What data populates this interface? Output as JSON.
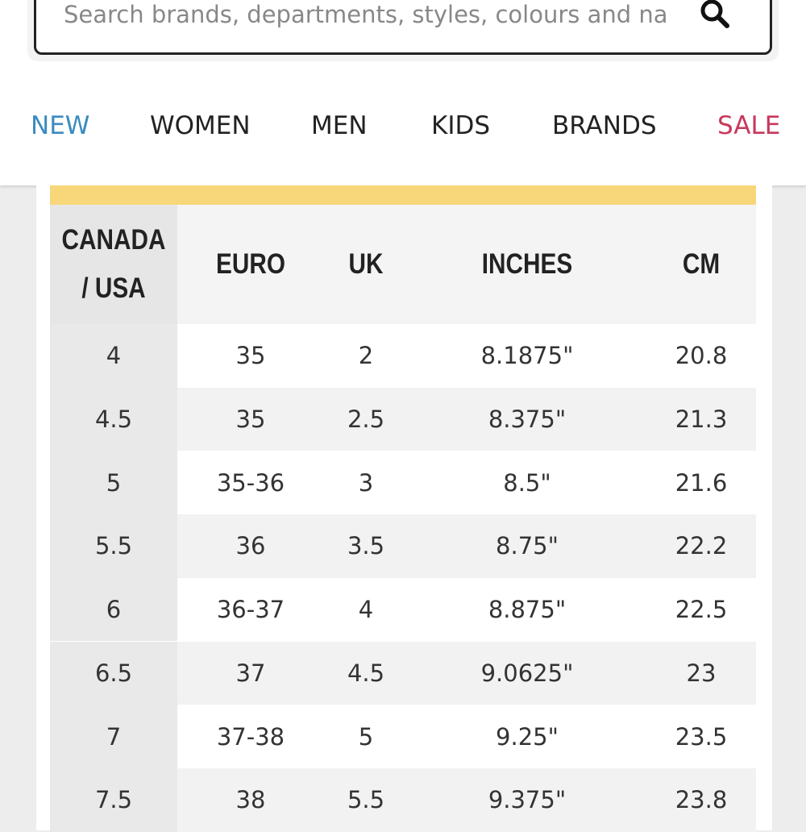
{
  "search": {
    "placeholder": "Search brands, departments, styles, colours and na"
  },
  "nav": [
    "NEW",
    "WOMEN",
    "MEN",
    "KIDS",
    "BRANDS",
    "SALE"
  ],
  "table": {
    "headers": [
      "CANADA / USA",
      "EURO",
      "UK",
      "INCHES",
      "CM"
    ],
    "rows": [
      [
        "4",
        "35",
        "2",
        "8.1875\"",
        "20.8"
      ],
      [
        "4.5",
        "35",
        "2.5",
        "8.375\"",
        "21.3"
      ],
      [
        "5",
        "35-36",
        "3",
        "8.5\"",
        "21.6"
      ],
      [
        "5.5",
        "36",
        "3.5",
        "8.75\"",
        "22.2"
      ],
      [
        "6",
        "36-37",
        "4",
        "8.875\"",
        "22.5"
      ],
      [
        "6.5",
        "37",
        "4.5",
        "9.0625\"",
        "23"
      ],
      [
        "7",
        "37-38",
        "5",
        "9.25\"",
        "23.5"
      ],
      [
        "7.5",
        "38",
        "5.5",
        "9.375\"",
        "23.8"
      ]
    ]
  }
}
